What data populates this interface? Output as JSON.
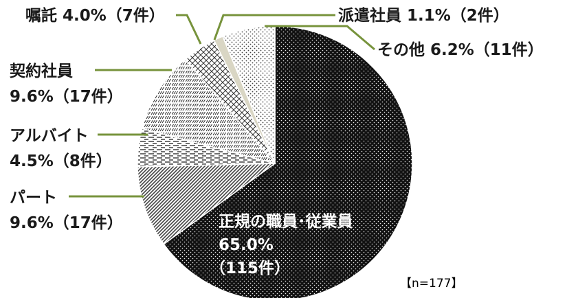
{
  "chart_data": {
    "type": "pie",
    "start_angle_deg": 0,
    "direction": "clockwise",
    "slices": [
      {
        "name": "正規の職員･従業員",
        "percent": 65.0,
        "count": 115,
        "pct_label": "65.0%",
        "count_label": "（115件）",
        "pattern": "dots-dark"
      },
      {
        "name": "パート",
        "percent": 9.6,
        "count": 17,
        "label": "パート",
        "label2": "9.6%（17件）",
        "pattern": "diagonal"
      },
      {
        "name": "アルバイト",
        "percent": 4.5,
        "count": 8,
        "label": "アルバイト",
        "label2": "4.5%（8件）",
        "pattern": "dashes"
      },
      {
        "name": "契約社員",
        "percent": 9.6,
        "count": 17,
        "label": "契約社員",
        "label2": "9.6%（17件）",
        "pattern": "slashes"
      },
      {
        "name": "嘱託",
        "percent": 4.0,
        "count": 7,
        "label": "嘱託 4.0%（7件）",
        "pattern": "crosshatch"
      },
      {
        "name": "派遣社員",
        "percent": 1.1,
        "count": 2,
        "label": "派遣社員 1.1%（2件）",
        "pattern": "solid-light"
      },
      {
        "name": "その他",
        "percent": 6.2,
        "count": 11,
        "label": "その他 6.2%（11件）",
        "pattern": "dots-light"
      }
    ],
    "n_label": "【n=177】",
    "leader_color": "#77933c"
  }
}
